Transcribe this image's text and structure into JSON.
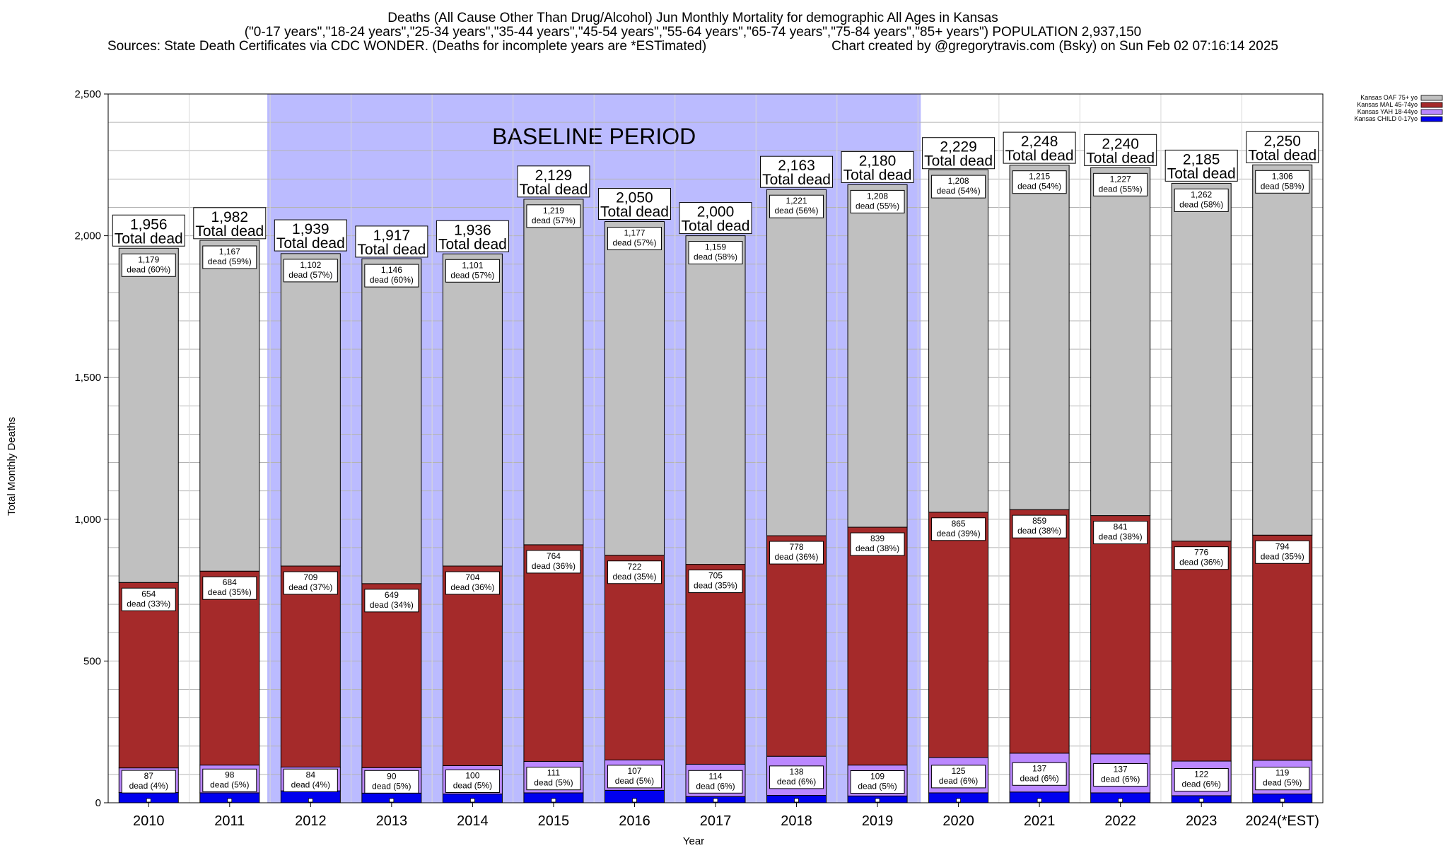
{
  "titles": {
    "line1": "Deaths (All Cause Other Than Drug/Alcohol) Jun Monthly Mortality for demographic All Ages in Kansas",
    "line2": "(\"0-17 years\",\"18-24 years\",\"25-34 years\",\"35-44 years\",\"45-54 years\",\"55-64 years\",\"65-74 years\",\"75-84 years\",\"85+ years\") POPULATION 2,937,150",
    "line3_left": "Sources: State Death Certificates via CDC WONDER. (Deaths for incomplete years are *ESTimated)",
    "line3_right": "Chart created by @gregorytravis.com (Bsky) on Sun Feb 02 07:16:14 2025"
  },
  "baseline": {
    "label": "BASELINE PERIOD",
    "start": "2012",
    "end": "2019",
    "color": "#bbbbff"
  },
  "chart_data": {
    "type": "bar",
    "stacked": true,
    "xlabel": "Year",
    "ylabel": "Total Monthly Deaths",
    "ylim": [
      0,
      2500
    ],
    "yticks": [
      0,
      500,
      1000,
      1500,
      2000,
      2500
    ],
    "ytick_labels": [
      "0",
      "500",
      "1,000",
      "1,500",
      "2,000",
      "2,500"
    ],
    "grid": true,
    "legend_position": "top-right",
    "categories": [
      "2010",
      "2011",
      "2012",
      "2013",
      "2014",
      "2015",
      "2016",
      "2017",
      "2018",
      "2019",
      "2020",
      "2021",
      "2022",
      "2023",
      "2024(*EST)"
    ],
    "series": [
      {
        "name": "Kansas CHILD 0-17yo",
        "color": "#0000ee",
        "values": [
          36,
          35,
          42,
          34,
          31,
          35,
          44,
          22,
          26,
          24,
          35,
          38,
          35,
          25,
          31
        ]
      },
      {
        "name": "Kansas YAH 18-44yo",
        "color": "#bb88ff",
        "values": [
          87,
          98,
          84,
          90,
          100,
          111,
          107,
          114,
          138,
          109,
          125,
          137,
          137,
          122,
          119
        ],
        "labels": [
          "87\ndead (4%)",
          "98\ndead (5%)",
          "84\ndead (4%)",
          "90\ndead (5%)",
          "100\ndead (5%)",
          "111\ndead (5%)",
          "107\ndead (5%)",
          "114\ndead (6%)",
          "138\ndead (6%)",
          "109\ndead (5%)",
          "125\ndead (6%)",
          "137\ndead (6%)",
          "137\ndead (6%)",
          "122\ndead (6%)",
          "119\ndead (5%)"
        ]
      },
      {
        "name": "Kansas MAL 45-74yo",
        "color": "#a52a2a",
        "values": [
          654,
          684,
          709,
          649,
          704,
          764,
          722,
          705,
          778,
          839,
          865,
          859,
          841,
          776,
          794
        ],
        "labels": [
          "654\ndead (33%)",
          "684\ndead (35%)",
          "709\ndead (37%)",
          "649\ndead (34%)",
          "704\ndead (36%)",
          "764\ndead (36%)",
          "722\ndead (35%)",
          "705\ndead (35%)",
          "778\ndead (36%)",
          "839\ndead (38%)",
          "865\ndead (39%)",
          "859\ndead (38%)",
          "841\ndead (38%)",
          "776\ndead (36%)",
          "794\ndead (35%)"
        ]
      },
      {
        "name": "Kansas OAF 75+ yo",
        "color": "#c0c0c0",
        "values": [
          1179,
          1167,
          1102,
          1146,
          1101,
          1219,
          1177,
          1159,
          1221,
          1208,
          1208,
          1215,
          1227,
          1262,
          1306
        ],
        "labels": [
          "1,179\ndead (60%)",
          "1,167\ndead (59%)",
          "1,102\ndead (57%)",
          "1,146\ndead (60%)",
          "1,101\ndead (57%)",
          "1,219\ndead (57%)",
          "1,177\ndead (57%)",
          "1,159\ndead (58%)",
          "1,221\ndead (56%)",
          "1,208\ndead (55%)",
          "1,208\ndead (54%)",
          "1,215\ndead (54%)",
          "1,227\ndead (55%)",
          "1,262\ndead (58%)",
          "1,306\ndead (58%)"
        ]
      }
    ],
    "totals": [
      1956,
      1982,
      1939,
      1917,
      1936,
      2129,
      2050,
      2000,
      2163,
      2180,
      2229,
      2248,
      2240,
      2185,
      2250
    ],
    "total_labels": [
      "1,956",
      "1,982",
      "1,939",
      "1,917",
      "1,936",
      "2,129",
      "2,050",
      "2,000",
      "2,163",
      "2,180",
      "2,229",
      "2,248",
      "2,240",
      "2,185",
      "2,250"
    ],
    "total_suffix": "Total dead"
  }
}
